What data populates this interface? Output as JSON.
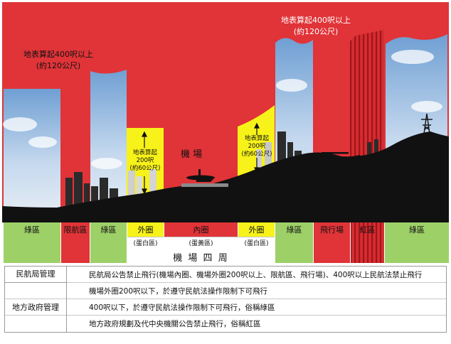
{
  "colors": {
    "red": "#e03438",
    "yellow": "#f7f219",
    "green": "#9ed068",
    "stripe": "#c2262a",
    "terrain": "#111111",
    "sky": "#9cbfe2"
  },
  "top_labels": {
    "left": {
      "line1": "地表算起400呎以上",
      "line2": "(約120公尺)"
    },
    "right": {
      "line1": "地表算起400呎以上",
      "line2": "(約120公尺)"
    }
  },
  "airport_label": "機 場",
  "yellow_labels": {
    "left": {
      "line1": "地表算起",
      "line2": "200呎",
      "line3": "(約60公尺)"
    },
    "right": {
      "line1": "地表算起",
      "line2": "200呎",
      "line3": "(約60公尺)"
    }
  },
  "bottom_bar": [
    {
      "label": "綠區",
      "zone": "green"
    },
    {
      "label": "限航區",
      "zone": "red"
    },
    {
      "label": "綠區",
      "zone": "green"
    },
    {
      "label": "外圈",
      "zone": "yellow"
    },
    {
      "label": "內圈",
      "zone": "red"
    },
    {
      "label": "外圈",
      "zone": "yellow"
    },
    {
      "label": "綠區",
      "zone": "green"
    },
    {
      "label": "飛行場",
      "zone": "red"
    },
    {
      "label": "紅區",
      "zone": "stripe"
    },
    {
      "label": "綠區",
      "zone": "green"
    }
  ],
  "sub_labels": {
    "outer_left": "(蛋白區)",
    "inner": "(蛋黃區)",
    "outer_right": "(蛋白區)"
  },
  "surroundings_label": "機 場 四 周",
  "legend": {
    "category1": "民航局管理",
    "category2": "地方政府管理",
    "rows": [
      {
        "swatch": "red",
        "text": "民航局公告禁止飛行(機場內圈、機場外圈200呎以上、限航區、飛行場)、400呎以上民航法禁止飛行"
      },
      {
        "swatch": "yellow",
        "text": "機場外圈200呎以下，於遵守民航法操作限制下可飛行"
      },
      {
        "swatch": "green",
        "text": "400呎以下，於遵守民航法操作限制下可飛行，俗稱綠區"
      },
      {
        "swatch": "stripe",
        "text": "地方政府規劃及代中央機關公告禁止飛行，俗稱紅區"
      }
    ]
  }
}
